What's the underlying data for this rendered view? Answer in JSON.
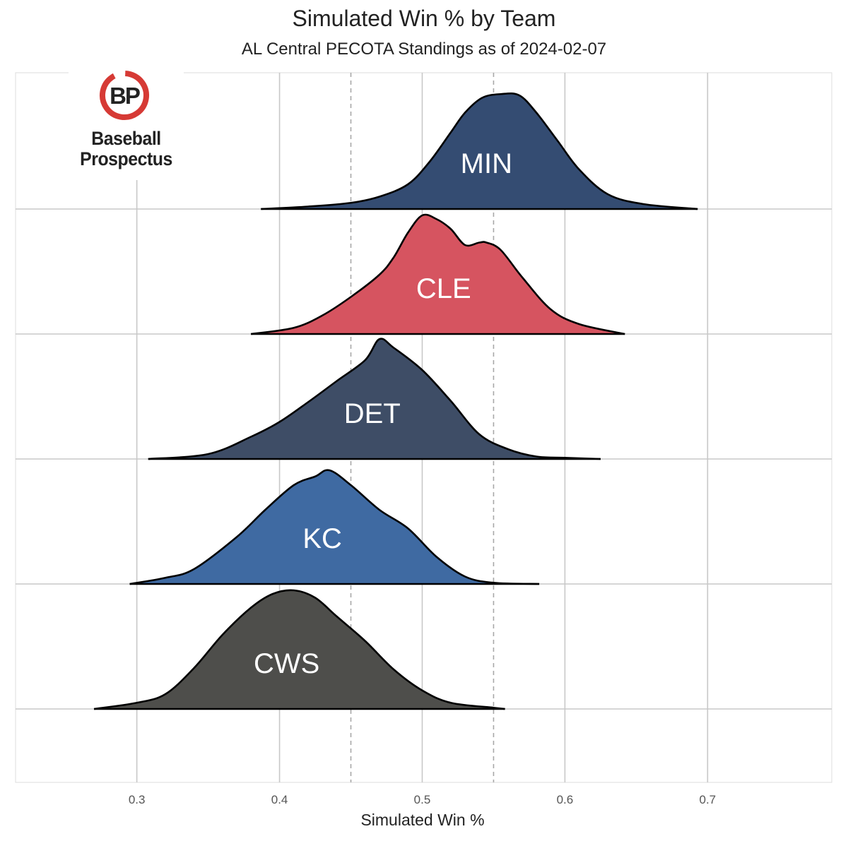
{
  "chart_data": {
    "type": "ridgeline",
    "title": "Simulated Win % by Team",
    "subtitle": "AL Central PECOTA Standings as of 2024-02-07",
    "xlabel": "Simulated Win %",
    "xlim": [
      0.215,
      0.787
    ],
    "xticks": [
      0.3,
      0.4,
      0.5,
      0.6,
      0.7
    ],
    "xtick_labels": [
      "0.3",
      "0.4",
      "0.5",
      "0.6",
      "0.7"
    ],
    "reference_lines": [
      0.45,
      0.55
    ],
    "grid": true,
    "series": [
      {
        "name": "MIN",
        "color": "#344c72",
        "x": [
          0.387,
          0.42,
          0.45,
          0.47,
          0.49,
          0.505,
          0.52,
          0.53,
          0.542,
          0.555,
          0.568,
          0.58,
          0.595,
          0.61,
          0.63,
          0.655,
          0.693
        ],
        "density": [
          0.0,
          0.02,
          0.05,
          0.1,
          0.2,
          0.38,
          0.62,
          0.78,
          0.9,
          0.93,
          0.92,
          0.78,
          0.55,
          0.32,
          0.12,
          0.04,
          0.0
        ],
        "label_x": 0.545
      },
      {
        "name": "CLE",
        "color": "#d65460",
        "x": [
          0.38,
          0.41,
          0.43,
          0.45,
          0.47,
          0.48,
          0.49,
          0.5,
          0.51,
          0.52,
          0.53,
          0.54,
          0.545,
          0.555,
          0.57,
          0.59,
          0.61,
          0.642
        ],
        "density": [
          0.0,
          0.05,
          0.15,
          0.3,
          0.48,
          0.62,
          0.82,
          0.96,
          0.93,
          0.85,
          0.72,
          0.74,
          0.74,
          0.68,
          0.46,
          0.2,
          0.08,
          0.0
        ],
        "label_x": 0.515
      },
      {
        "name": "DET",
        "color": "#3e4d66",
        "x": [
          0.308,
          0.35,
          0.38,
          0.4,
          0.42,
          0.44,
          0.46,
          0.47,
          0.48,
          0.5,
          0.52,
          0.54,
          0.56,
          0.58,
          0.6,
          0.625
        ],
        "density": [
          0.0,
          0.04,
          0.18,
          0.3,
          0.46,
          0.63,
          0.8,
          0.97,
          0.9,
          0.72,
          0.47,
          0.2,
          0.08,
          0.02,
          0.01,
          0.0
        ],
        "label_x": 0.465
      },
      {
        "name": "KC",
        "color": "#3f6aa2",
        "x": [
          0.295,
          0.32,
          0.34,
          0.37,
          0.39,
          0.41,
          0.425,
          0.435,
          0.45,
          0.47,
          0.49,
          0.51,
          0.53,
          0.55,
          0.582
        ],
        "density": [
          0.0,
          0.05,
          0.12,
          0.38,
          0.6,
          0.8,
          0.87,
          0.92,
          0.8,
          0.6,
          0.45,
          0.22,
          0.06,
          0.01,
          0.0
        ],
        "label_x": 0.43
      },
      {
        "name": "CWS",
        "color": "#4e4e4b",
        "x": [
          0.27,
          0.3,
          0.32,
          0.34,
          0.36,
          0.38,
          0.395,
          0.41,
          0.425,
          0.44,
          0.46,
          0.48,
          0.5,
          0.52,
          0.55,
          0.558
        ],
        "density": [
          0.0,
          0.05,
          0.12,
          0.33,
          0.6,
          0.82,
          0.93,
          0.96,
          0.9,
          0.75,
          0.55,
          0.32,
          0.15,
          0.05,
          0.01,
          0.0
        ],
        "label_x": 0.405
      }
    ]
  },
  "logo": {
    "text_line1": "Baseball",
    "text_line2": "Prospectus",
    "badge_text": "BP",
    "red": "#d63a35"
  }
}
